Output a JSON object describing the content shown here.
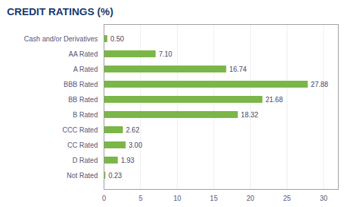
{
  "chart_data": {
    "type": "bar",
    "orientation": "horizontal",
    "title": "CREDIT RATINGS (%)",
    "categories": [
      "Not Rated",
      "D Rated",
      "CC Rated",
      "CCC Rated",
      "B Rated",
      "BB Rated",
      "BBB Rated",
      "A Rated",
      "AA Rated",
      "Cash and/or Derivatives"
    ],
    "values": [
      0.23,
      1.93,
      3.0,
      2.62,
      18.32,
      21.68,
      27.88,
      16.74,
      7.1,
      0.5
    ],
    "value_labels": [
      "0.23",
      "1.93",
      "3.00",
      "2.62",
      "18.32",
      "21.68",
      "27.88",
      "16.74",
      "7.10",
      "0.50"
    ],
    "color": "#7AB648",
    "xlim": [
      0,
      32
    ],
    "xticks": [
      0,
      5,
      10,
      15,
      20,
      25,
      30
    ],
    "grid": true,
    "data_labels": true
  }
}
